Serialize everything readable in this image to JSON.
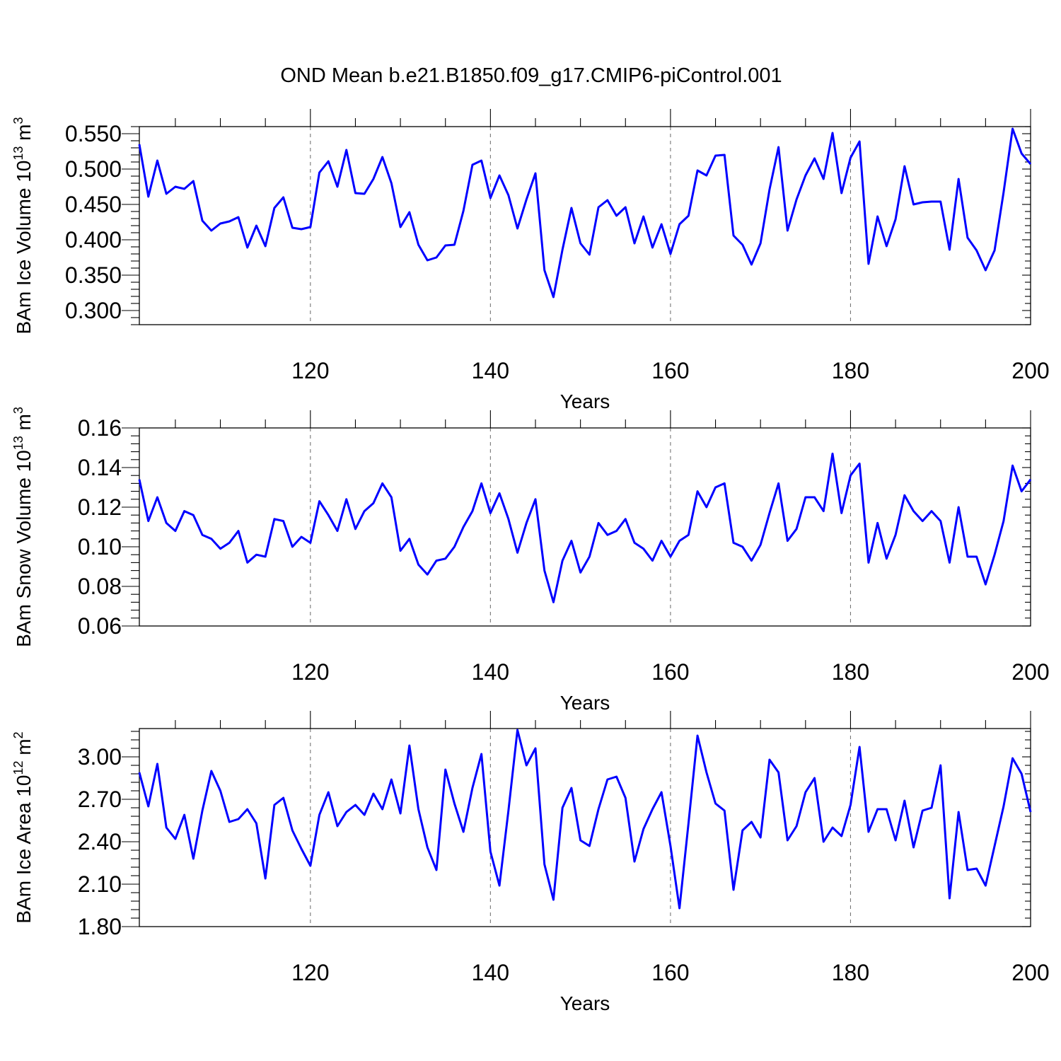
{
  "figure_title": "OND Mean b.e21.B1850.f09_g17.CMIP6-piControl.001",
  "colors": {
    "series": "#0000ff",
    "grid": "#777777",
    "axes": "#000000"
  },
  "chart_data": [
    {
      "type": "line",
      "ylabel": "BAm Ice Volume 10",
      "ylabel_exp": "13",
      "ylabel_unit": " m",
      "ylabel_unit_exp": "3",
      "xlabel": "Years",
      "xlim": [
        101,
        200
      ],
      "ylim": [
        0.28,
        0.56
      ],
      "yticks": [
        0.3,
        0.35,
        0.4,
        0.45,
        0.5,
        0.55
      ],
      "ytick_labels": [
        "0.300",
        "0.350",
        "0.400",
        "0.450",
        "0.500",
        "0.550"
      ],
      "xticks": [
        120,
        140,
        160,
        180,
        200
      ],
      "xtick_labels": [
        "120",
        "140",
        "160",
        "180",
        "200"
      ],
      "x": [
        101,
        102,
        103,
        104,
        105,
        106,
        107,
        108,
        109,
        110,
        111,
        112,
        113,
        114,
        115,
        116,
        117,
        118,
        119,
        120,
        121,
        122,
        123,
        124,
        125,
        126,
        127,
        128,
        129,
        130,
        131,
        132,
        133,
        134,
        135,
        136,
        137,
        138,
        139,
        140,
        141,
        142,
        143,
        144,
        145,
        146,
        147,
        148,
        149,
        150,
        151,
        152,
        153,
        154,
        155,
        156,
        157,
        158,
        159,
        160,
        161,
        162,
        163,
        164,
        165,
        166,
        167,
        168,
        169,
        170,
        171,
        172,
        173,
        174,
        175,
        176,
        177,
        178,
        179,
        180,
        181,
        182,
        183,
        184,
        185,
        186,
        187,
        188,
        189,
        190,
        191,
        192,
        193,
        194,
        195,
        196,
        197,
        198,
        199,
        200
      ],
      "values": [
        0.535,
        0.461,
        0.512,
        0.465,
        0.475,
        0.472,
        0.483,
        0.427,
        0.413,
        0.423,
        0.426,
        0.432,
        0.389,
        0.42,
        0.391,
        0.445,
        0.46,
        0.417,
        0.415,
        0.418,
        0.495,
        0.511,
        0.475,
        0.527,
        0.466,
        0.465,
        0.486,
        0.517,
        0.48,
        0.418,
        0.439,
        0.393,
        0.371,
        0.375,
        0.392,
        0.393,
        0.441,
        0.506,
        0.512,
        0.459,
        0.491,
        0.463,
        0.416,
        0.457,
        0.494,
        0.357,
        0.319,
        0.386,
        0.445,
        0.395,
        0.379,
        0.446,
        0.456,
        0.434,
        0.446,
        0.395,
        0.433,
        0.389,
        0.422,
        0.38,
        0.422,
        0.434,
        0.498,
        0.491,
        0.519,
        0.52,
        0.406,
        0.393,
        0.365,
        0.395,
        0.471,
        0.531,
        0.413,
        0.457,
        0.491,
        0.515,
        0.486,
        0.551,
        0.466,
        0.516,
        0.539,
        0.366,
        0.433,
        0.391,
        0.429,
        0.504,
        0.45,
        0.453,
        0.454,
        0.454,
        0.386,
        0.486,
        0.403,
        0.385,
        0.357,
        0.385,
        0.467,
        0.557,
        0.522,
        0.507
      ]
    },
    {
      "type": "line",
      "ylabel": "BAm Snow Volume 10",
      "ylabel_exp": "13",
      "ylabel_unit": " m",
      "ylabel_unit_exp": "3",
      "xlabel": "Years",
      "xlim": [
        101,
        200
      ],
      "ylim": [
        0.06,
        0.16
      ],
      "yticks": [
        0.06,
        0.08,
        0.1,
        0.12,
        0.14,
        0.16
      ],
      "ytick_labels": [
        "0.06",
        "0.08",
        "0.10",
        "0.12",
        "0.14",
        "0.16"
      ],
      "xticks": [
        120,
        140,
        160,
        180,
        200
      ],
      "xtick_labels": [
        "120",
        "140",
        "160",
        "180",
        "200"
      ],
      "x": [
        101,
        102,
        103,
        104,
        105,
        106,
        107,
        108,
        109,
        110,
        111,
        112,
        113,
        114,
        115,
        116,
        117,
        118,
        119,
        120,
        121,
        122,
        123,
        124,
        125,
        126,
        127,
        128,
        129,
        130,
        131,
        132,
        133,
        134,
        135,
        136,
        137,
        138,
        139,
        140,
        141,
        142,
        143,
        144,
        145,
        146,
        147,
        148,
        149,
        150,
        151,
        152,
        153,
        154,
        155,
        156,
        157,
        158,
        159,
        160,
        161,
        162,
        163,
        164,
        165,
        166,
        167,
        168,
        169,
        170,
        171,
        172,
        173,
        174,
        175,
        176,
        177,
        178,
        179,
        180,
        181,
        182,
        183,
        184,
        185,
        186,
        187,
        188,
        189,
        190,
        191,
        192,
        193,
        194,
        195,
        196,
        197,
        198,
        199,
        200
      ],
      "values": [
        0.134,
        0.113,
        0.125,
        0.112,
        0.108,
        0.118,
        0.116,
        0.106,
        0.104,
        0.099,
        0.102,
        0.108,
        0.092,
        0.096,
        0.095,
        0.114,
        0.113,
        0.1,
        0.105,
        0.102,
        0.123,
        0.116,
        0.108,
        0.124,
        0.109,
        0.118,
        0.122,
        0.132,
        0.125,
        0.098,
        0.104,
        0.091,
        0.086,
        0.093,
        0.094,
        0.1,
        0.11,
        0.118,
        0.132,
        0.117,
        0.127,
        0.114,
        0.097,
        0.112,
        0.124,
        0.088,
        0.072,
        0.093,
        0.103,
        0.087,
        0.095,
        0.112,
        0.106,
        0.108,
        0.114,
        0.102,
        0.099,
        0.093,
        0.103,
        0.095,
        0.103,
        0.106,
        0.128,
        0.12,
        0.13,
        0.132,
        0.102,
        0.1,
        0.093,
        0.101,
        0.117,
        0.132,
        0.103,
        0.109,
        0.125,
        0.125,
        0.118,
        0.147,
        0.117,
        0.136,
        0.142,
        0.092,
        0.112,
        0.094,
        0.106,
        0.126,
        0.118,
        0.113,
        0.118,
        0.113,
        0.092,
        0.12,
        0.095,
        0.095,
        0.081,
        0.096,
        0.113,
        0.141,
        0.128,
        0.134
      ]
    },
    {
      "type": "line",
      "ylabel": "BAm Ice Area 10",
      "ylabel_exp": "12",
      "ylabel_unit": " m",
      "ylabel_unit_exp": "2",
      "xlabel": "Years",
      "xlim": [
        101,
        200
      ],
      "ylim": [
        1.8,
        3.2
      ],
      "yticks": [
        1.8,
        2.1,
        2.4,
        2.7,
        3.0
      ],
      "ytick_labels": [
        "1.80",
        "2.10",
        "2.40",
        "2.70",
        "3.00"
      ],
      "xticks": [
        120,
        140,
        160,
        180,
        200
      ],
      "xtick_labels": [
        "120",
        "140",
        "160",
        "180",
        "200"
      ],
      "x": [
        101,
        102,
        103,
        104,
        105,
        106,
        107,
        108,
        109,
        110,
        111,
        112,
        113,
        114,
        115,
        116,
        117,
        118,
        119,
        120,
        121,
        122,
        123,
        124,
        125,
        126,
        127,
        128,
        129,
        130,
        131,
        132,
        133,
        134,
        135,
        136,
        137,
        138,
        139,
        140,
        141,
        142,
        143,
        144,
        145,
        146,
        147,
        148,
        149,
        150,
        151,
        152,
        153,
        154,
        155,
        156,
        157,
        158,
        159,
        160,
        161,
        162,
        163,
        164,
        165,
        166,
        167,
        168,
        169,
        170,
        171,
        172,
        173,
        174,
        175,
        176,
        177,
        178,
        179,
        180,
        181,
        182,
        183,
        184,
        185,
        186,
        187,
        188,
        189,
        190,
        191,
        192,
        193,
        194,
        195,
        196,
        197,
        198,
        199,
        200
      ],
      "values": [
        2.89,
        2.65,
        2.95,
        2.5,
        2.42,
        2.59,
        2.28,
        2.62,
        2.9,
        2.76,
        2.54,
        2.56,
        2.63,
        2.53,
        2.14,
        2.66,
        2.71,
        2.48,
        2.35,
        2.23,
        2.59,
        2.75,
        2.51,
        2.61,
        2.66,
        2.59,
        2.74,
        2.63,
        2.84,
        2.6,
        3.08,
        2.63,
        2.36,
        2.2,
        2.91,
        2.67,
        2.47,
        2.78,
        3.02,
        2.33,
        2.09,
        2.62,
        3.19,
        2.94,
        3.06,
        2.24,
        1.99,
        2.64,
        2.78,
        2.41,
        2.37,
        2.63,
        2.84,
        2.86,
        2.71,
        2.26,
        2.49,
        2.63,
        2.75,
        2.37,
        1.93,
        2.53,
        3.15,
        2.89,
        2.67,
        2.62,
        2.06,
        2.48,
        2.54,
        2.43,
        2.98,
        2.89,
        2.41,
        2.51,
        2.75,
        2.85,
        2.4,
        2.5,
        2.44,
        2.66,
        3.07,
        2.47,
        2.63,
        2.63,
        2.41,
        2.69,
        2.36,
        2.62,
        2.64,
        2.94,
        2.0,
        2.61,
        2.2,
        2.21,
        2.09,
        2.37,
        2.65,
        2.99,
        2.88,
        2.61
      ]
    }
  ]
}
